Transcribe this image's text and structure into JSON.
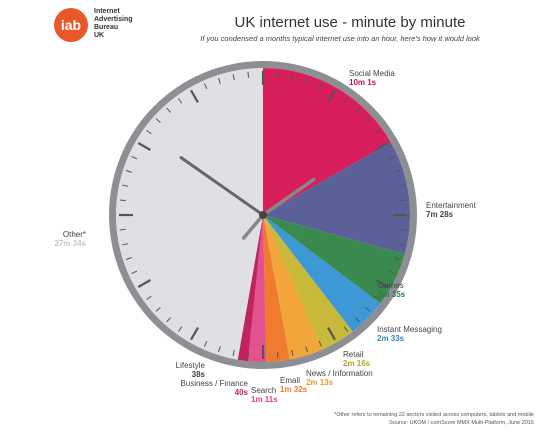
{
  "logo": {
    "text": "iab",
    "org_lines": [
      "Internet",
      "Advertising",
      "Bureau",
      "UK"
    ]
  },
  "title": "UK internet use - minute by minute",
  "subtitle": "If you condensed a months typical internet use into an hour, here's how it would look",
  "chart_data": {
    "type": "pie",
    "unit": "minutes out of 60",
    "start": "12 o'clock, clockwise",
    "categories": [
      "Social Media",
      "Entertainment",
      "Games",
      "Instant Messaging",
      "Retail",
      "News / Information",
      "Email",
      "Search",
      "Business / Finance",
      "Lifestyle",
      "Other*"
    ],
    "time_labels": [
      "10m 1s",
      "7m 28s",
      "3m 35s",
      "2m 33s",
      "2m 16s",
      "2m 13s",
      "1m 32s",
      "1m 11s",
      "40s",
      "38s",
      "27m 34s"
    ],
    "values": [
      10.017,
      7.467,
      3.583,
      2.55,
      2.267,
      2.217,
      1.533,
      1.183,
      0.667,
      0.633,
      27.567
    ],
    "colors": [
      "#d81e5b",
      "#5b6198",
      "#3a8a50",
      "#3c99d6",
      "#c9b93b",
      "#f2a53b",
      "#f07a2e",
      "#e2528e",
      "#c0245e",
      "#dfe0e3",
      "#dfe0e3"
    ],
    "label_colors": [
      "#c0174f",
      "#444444",
      "#2f7a3e",
      "#2b88c8",
      "#b7a51f",
      "#f29a2a",
      "#f07a2e",
      "#e2407a",
      "#c0245e",
      "#444444",
      "#c8c8c8"
    ]
  },
  "footnote": [
    "*Other refers to remaining 22 sectors visited across computers, tablets and mobile",
    "Source: UKOM / comScore MMX Multi-Platform, June 2015"
  ]
}
